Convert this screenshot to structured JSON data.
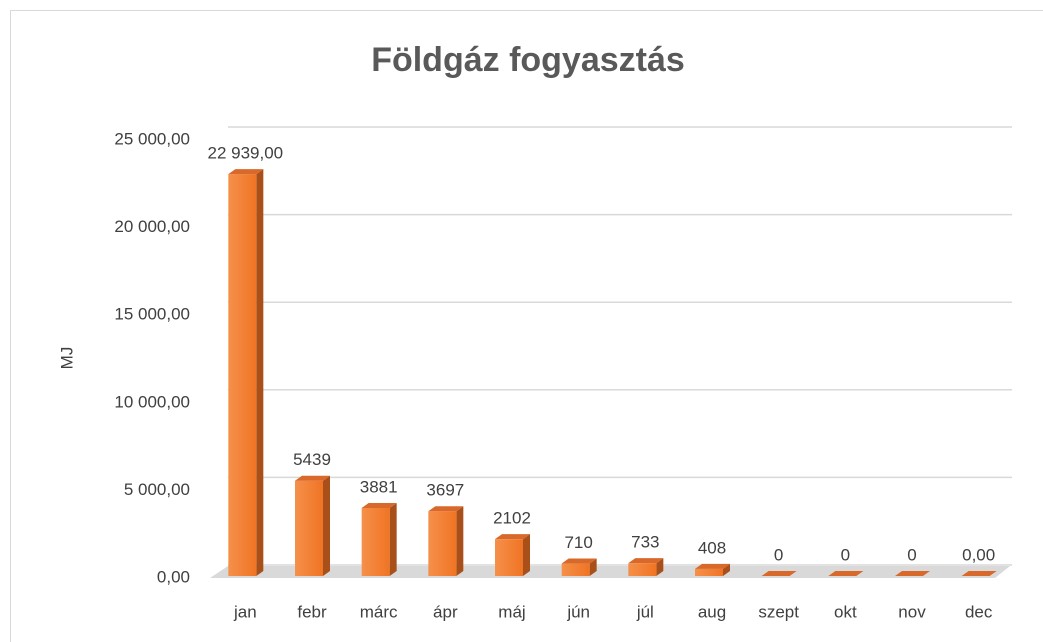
{
  "chart_data": {
    "type": "bar3d",
    "title": "Földgáz fogyasztás",
    "y_label": "MJ",
    "categories": [
      "jan",
      "febr",
      "márc",
      "ápr",
      "máj",
      "jún",
      "júl",
      "aug",
      "szept",
      "okt",
      "nov",
      "dec"
    ],
    "values": [
      22939,
      5439,
      3881,
      3697,
      2102,
      710,
      733,
      408,
      0,
      0,
      0,
      0
    ],
    "value_labels": [
      "22 939,00",
      "5439",
      "3881",
      "3697",
      "2102",
      "710",
      "733",
      "408",
      "0",
      "0",
      "0",
      "0,00"
    ],
    "color": "#f47c2b",
    "ylim": [
      0,
      25000
    ],
    "yticks": [
      {
        "value": 0,
        "label": "0,00"
      },
      {
        "value": 5000,
        "label": "5 000,00"
      },
      {
        "value": 10000,
        "label": "10 000,00"
      },
      {
        "value": 15000,
        "label": "15 000,00"
      },
      {
        "value": 20000,
        "label": "20 000,00"
      },
      {
        "value": 25000,
        "label": "25 000,00"
      }
    ],
    "grid": true
  }
}
